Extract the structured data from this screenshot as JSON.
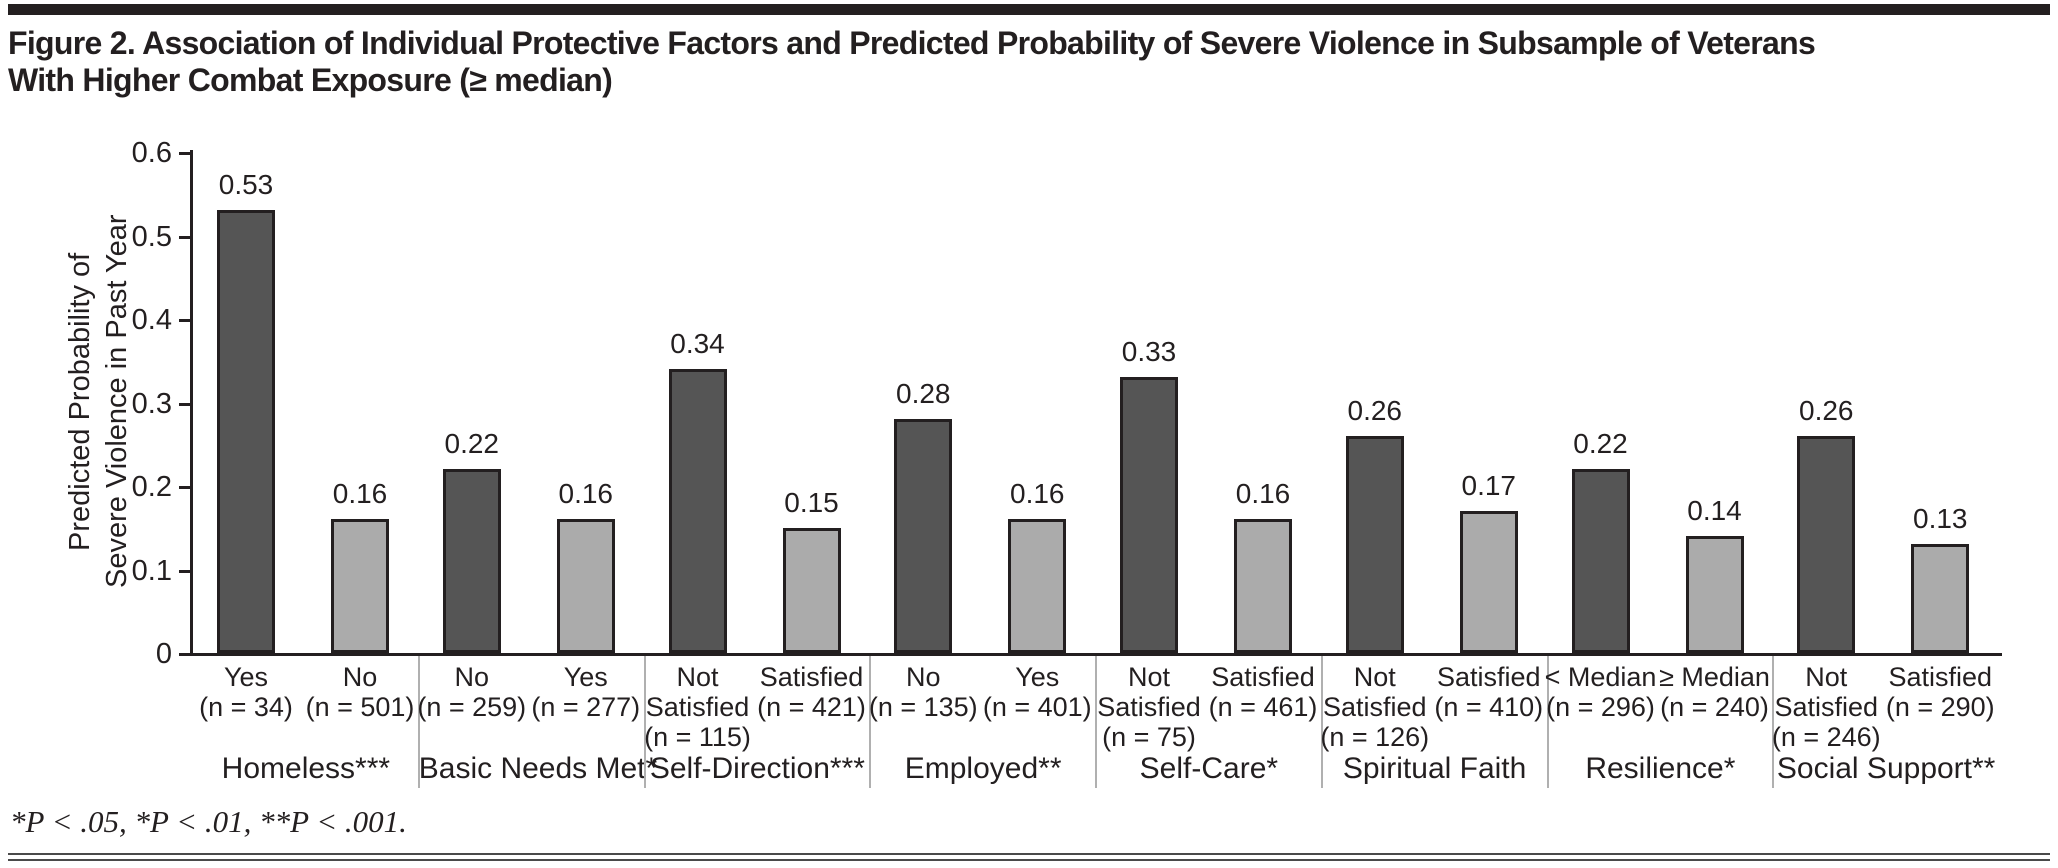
{
  "title_line1": "Figure 2. Association of Individual Protective Factors and Predicted Probability of Severe Violence in Subsample of Veterans",
  "title_line2": "With Higher Combat Exposure (≥ median)",
  "footnote": "*P < .05, *P < .01, **P < .001.",
  "chart_data": {
    "type": "bar",
    "title": "Figure 2. Association of Individual Protective Factors and Predicted Probability of Severe Violence in Subsample of Veterans With Higher Combat Exposure (≥ median)",
    "ylabel_lines": [
      "Predicted Probability of",
      "Severe Violence in Past Year"
    ],
    "xlabel": "",
    "ylim": [
      0,
      0.6
    ],
    "ytick_labels": [
      "0",
      "0.1",
      "0.2",
      "0.3",
      "0.4",
      "0.5",
      "0.6"
    ],
    "yticks": [
      0,
      0.1,
      0.2,
      0.3,
      0.4,
      0.5,
      0.6
    ],
    "grid": false,
    "legend": false,
    "bar_colors": {
      "dark": "#555555",
      "light": "#ababab"
    },
    "groups": [
      {
        "name": "Homeless***",
        "bars": [
          {
            "label_lines": [
              "Yes",
              "(n = 34)"
            ],
            "value": 0.53,
            "shade": "dark"
          },
          {
            "label_lines": [
              "No",
              "(n = 501)"
            ],
            "value": 0.16,
            "shade": "light"
          }
        ]
      },
      {
        "name": "Basic Needs Met*",
        "bars": [
          {
            "label_lines": [
              "No",
              "(n = 259)"
            ],
            "value": 0.22,
            "shade": "dark"
          },
          {
            "label_lines": [
              "Yes",
              "(n = 277)"
            ],
            "value": 0.16,
            "shade": "light"
          }
        ]
      },
      {
        "name": "Self-Direction***",
        "bars": [
          {
            "label_lines": [
              "Not",
              "Satisfied",
              "(n = 115)"
            ],
            "value": 0.34,
            "shade": "dark"
          },
          {
            "label_lines": [
              "Satisfied",
              "(n = 421)"
            ],
            "value": 0.15,
            "shade": "light"
          }
        ]
      },
      {
        "name": "Employed**",
        "bars": [
          {
            "label_lines": [
              "No",
              "(n = 135)"
            ],
            "value": 0.28,
            "shade": "dark"
          },
          {
            "label_lines": [
              "Yes",
              "(n = 401)"
            ],
            "value": 0.16,
            "shade": "light"
          }
        ]
      },
      {
        "name": "Self-Care*",
        "bars": [
          {
            "label_lines": [
              "Not",
              "Satisfied",
              "(n = 75)"
            ],
            "value": 0.33,
            "shade": "dark"
          },
          {
            "label_lines": [
              "Satisfied",
              "(n = 461)"
            ],
            "value": 0.16,
            "shade": "light"
          }
        ]
      },
      {
        "name": "Spiritual Faith",
        "bars": [
          {
            "label_lines": [
              "Not",
              "Satisfied",
              "(n = 126)"
            ],
            "value": 0.26,
            "shade": "dark"
          },
          {
            "label_lines": [
              "Satisfied",
              "(n = 410)"
            ],
            "value": 0.17,
            "shade": "light"
          }
        ]
      },
      {
        "name": "Resilience*",
        "bars": [
          {
            "label_lines": [
              "< Median",
              "(n = 296)"
            ],
            "value": 0.22,
            "shade": "dark"
          },
          {
            "label_lines": [
              "≥ Median",
              "(n = 240)"
            ],
            "value": 0.14,
            "shade": "light"
          }
        ]
      },
      {
        "name": "Social Support**",
        "bars": [
          {
            "label_lines": [
              "Not",
              "Satisfied",
              "(n = 246)"
            ],
            "value": 0.26,
            "shade": "dark"
          },
          {
            "label_lines": [
              "Satisfied",
              "(n = 290)"
            ],
            "value": 0.13,
            "shade": "light"
          }
        ]
      }
    ]
  }
}
